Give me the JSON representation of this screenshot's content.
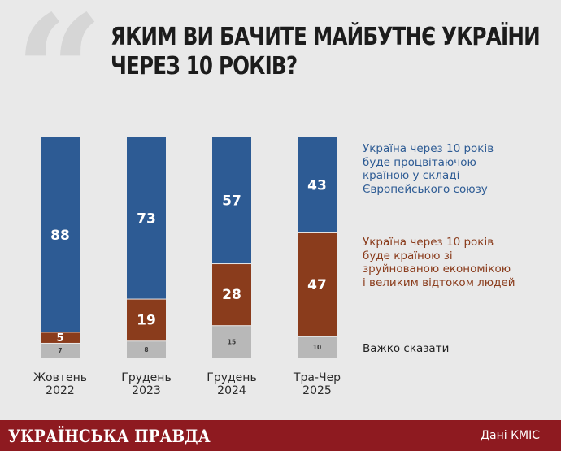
{
  "title_lines": [
    "ЯКИМ ВИ БАЧИТЕ МАЙБУТНЄ УКРАЇНИ",
    "ЧЕРЕЗ 10 РОКІВ?"
  ],
  "quote_glyph": "“",
  "legend": [
    {
      "lines": [
        "Україна через 10 років",
        "буде процвітаючою",
        "країною у складі",
        "Європейського союзу"
      ]
    },
    {
      "lines": [
        "Україна через 10 років",
        "буде країною зі",
        "зруйнованою економікою",
        "і великим відтоком людей"
      ]
    },
    {
      "lines": [
        "Важко сказати"
      ]
    }
  ],
  "footer": {
    "brand": "УКРАЇНСЬКА ПРАВДА",
    "source": "Дані КМІС"
  },
  "colors": {
    "eu": "#2d5b94",
    "ruined": "#8a3c1c",
    "hard": "#b8b8b8",
    "background": "#e9e9e9",
    "footer": "#8e1a20"
  },
  "chart_data": {
    "type": "bar",
    "stacked": true,
    "title": "ЯКИМ ВИ БАЧИТЕ МАЙБУТНЄ УКРАЇНИ ЧЕРЕЗ 10 РОКІВ?",
    "categories": [
      [
        "Жовтень",
        "2022"
      ],
      [
        "Грудень",
        "2023"
      ],
      [
        "Грудень",
        "2024"
      ],
      [
        "Тра-Чер",
        "2025"
      ]
    ],
    "series": [
      {
        "name": "Важко сказати",
        "values": [
          7,
          8,
          15,
          10
        ],
        "color": "#b8b8b8"
      },
      {
        "name": "Україна через 10 років буде країною зі зруйнованою економікою і великим відтоком людей",
        "values": [
          5,
          19,
          28,
          47
        ],
        "color": "#8a3c1c"
      },
      {
        "name": "Україна через 10 років буде процвітаючою країною у складі Європейського союзу",
        "values": [
          88,
          73,
          57,
          43
        ],
        "color": "#2d5b94"
      }
    ],
    "ylim": [
      0,
      100
    ],
    "legend_position": "right"
  }
}
